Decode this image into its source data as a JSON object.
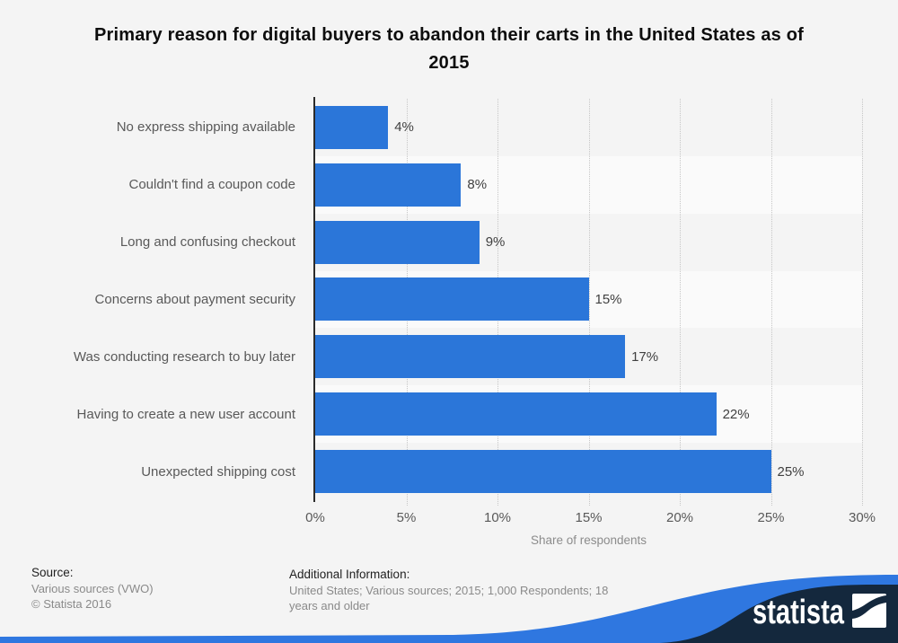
{
  "title": "Primary reason for digital buyers to abandon their carts in the United States as of 2015",
  "chart_data": {
    "type": "bar",
    "orientation": "horizontal",
    "categories": [
      "No express shipping available",
      "Couldn't find a coupon code",
      "Long and confusing checkout",
      "Concerns about payment security",
      "Was conducting research to buy later",
      "Having to create a new user account",
      "Unexpected shipping cost"
    ],
    "values": [
      4,
      8,
      9,
      15,
      17,
      22,
      25
    ],
    "value_labels": [
      "4%",
      "8%",
      "9%",
      "15%",
      "17%",
      "22%",
      "25%"
    ],
    "xlabel": "Share of respondents",
    "xlim": [
      0,
      30
    ],
    "x_ticks": [
      0,
      5,
      10,
      15,
      20,
      25,
      30
    ],
    "x_tick_labels": [
      "0%",
      "5%",
      "10%",
      "15%",
      "20%",
      "25%",
      "30%"
    ],
    "grid": "vertical-dotted",
    "legend": "none",
    "bar_color": "#2b76d9",
    "plot_band_colors": [
      "#f4f4f4",
      "#fafafa"
    ]
  },
  "footer": {
    "source_label": "Source:",
    "source_line1": "Various sources (VWO)",
    "source_line2": "© Statista 2016",
    "additional_label": "Additional Information:",
    "additional_text": "United States; Various sources; 2015; 1,000 Respondents; 18 years and older"
  },
  "branding": {
    "logo_text": "statista",
    "navy": "#14283d",
    "wave_blue": "#2f77e0"
  }
}
